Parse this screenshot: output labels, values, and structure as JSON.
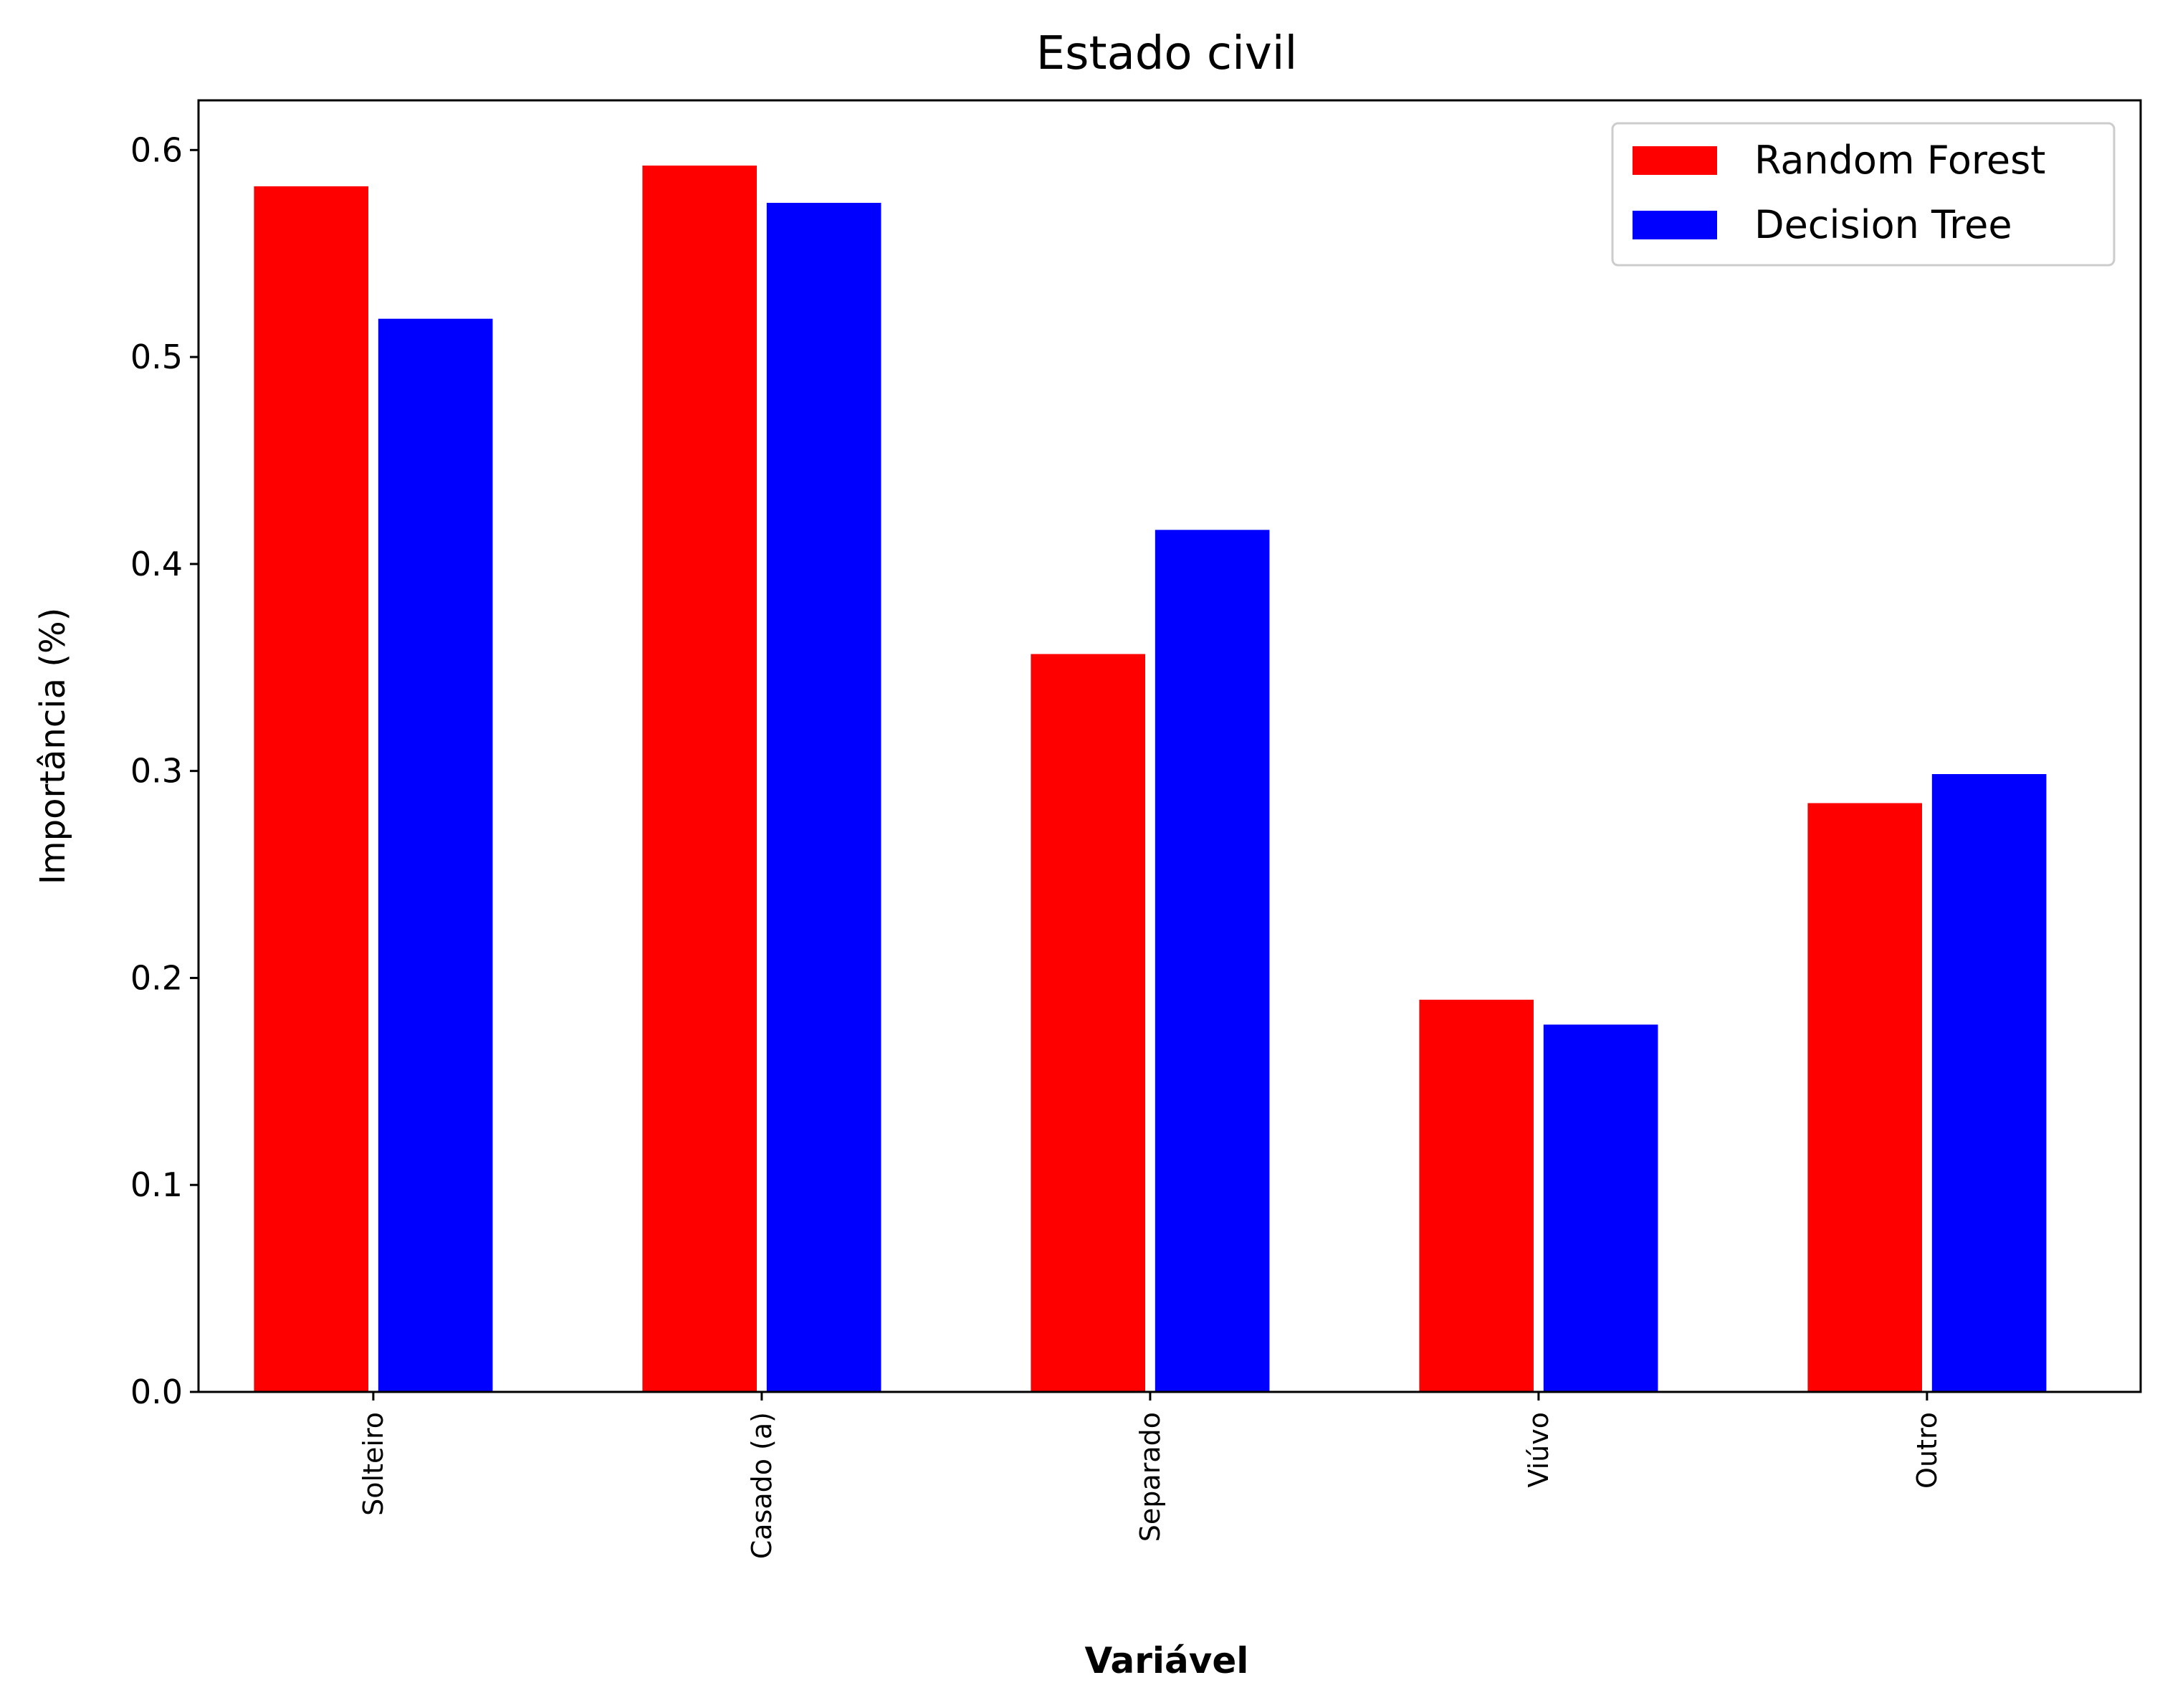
{
  "chart_data": {
    "type": "bar",
    "title": "Estado civil",
    "xlabel": "Variável",
    "ylabel": "Importância (%)",
    "categories": [
      "Solteiro",
      "Casado (a)",
      "Separado",
      "Viúvo",
      "Outro"
    ],
    "series": [
      {
        "name": "Random Forest",
        "color": "#ff0000",
        "values": [
          0.583,
          0.593,
          0.357,
          0.19,
          0.285
        ]
      },
      {
        "name": "Decision Tree",
        "color": "#0000ff",
        "values": [
          0.519,
          0.575,
          0.417,
          0.178,
          0.299
        ]
      }
    ],
    "ylim": [
      0,
      0.624
    ],
    "yticks": [
      "0.0",
      "0.1",
      "0.2",
      "0.3",
      "0.4",
      "0.5",
      "0.6"
    ],
    "xtick_rotation": "vertical",
    "grid": false,
    "legend_position": "top-right"
  }
}
